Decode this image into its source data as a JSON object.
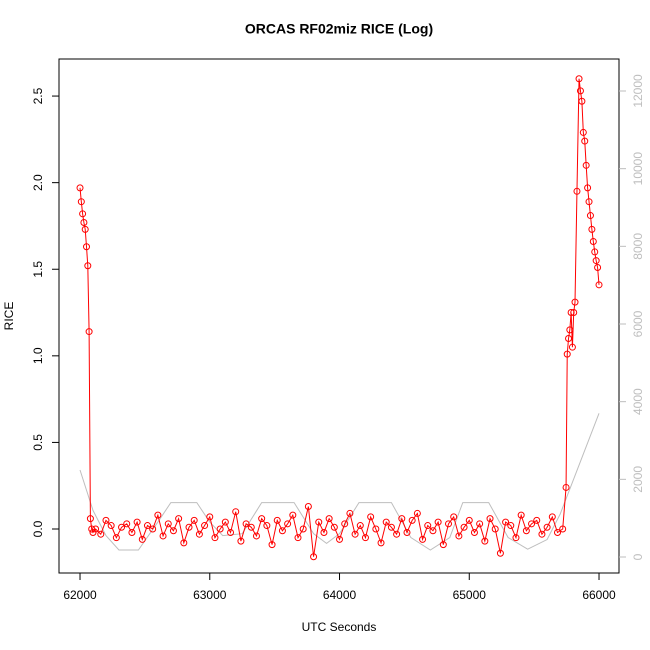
{
  "chart_data": {
    "type": "scatter",
    "title": "ORCAS RF02miz RICE (Log)",
    "xlabel": "UTC Seconds",
    "ylabel": "RICE",
    "xlim": [
      61838,
      66154
    ],
    "ylim": [
      -0.254,
      2.714
    ],
    "y2lim": [
      -412,
      12824
    ],
    "xticks": [
      62000,
      63000,
      64000,
      65000,
      66000
    ],
    "yticks": [
      {
        "value": 0,
        "label": "0.0"
      },
      {
        "value": 0.5,
        "label": "0.5"
      },
      {
        "value": 1,
        "label": "1.0"
      },
      {
        "value": 1.5,
        "label": "1.5"
      },
      {
        "value": 2,
        "label": "2.0"
      },
      {
        "value": 2.5,
        "label": "2.5"
      }
    ],
    "y2ticks": [
      0,
      2000,
      4000,
      6000,
      8000,
      10000,
      12000
    ],
    "series": [
      {
        "color": "#ff0000",
        "x": [
          62000,
          62010,
          62020,
          62030,
          62040,
          62050,
          62060,
          62070,
          62080,
          62090,
          62100,
          62120,
          62160,
          62200,
          62240,
          62280,
          62320,
          62360,
          62400,
          62440,
          62480,
          62520,
          62560,
          62600,
          62640,
          62680,
          62720,
          62760,
          62800,
          62840,
          62880,
          62920,
          62960,
          63000,
          63040,
          63080,
          63120,
          63160,
          63200,
          63240,
          63280,
          63320,
          63360,
          63400,
          63440,
          63480,
          63520,
          63560,
          63600,
          63640,
          63680,
          63720,
          63760,
          63800,
          63840,
          63880,
          63920,
          63960,
          64000,
          64040,
          64080,
          64120,
          64160,
          64200,
          64240,
          64280,
          64320,
          64360,
          64400,
          64440,
          64480,
          64520,
          64560,
          64600,
          64640,
          64680,
          64720,
          64760,
          64800,
          64840,
          64880,
          64920,
          64960,
          65000,
          65040,
          65080,
          65120,
          65160,
          65200,
          65240,
          65280,
          65320,
          65360,
          65400,
          65440,
          65480,
          65520,
          65560,
          65600,
          65640,
          65680,
          65720,
          65746,
          65755,
          65765,
          65775,
          65785,
          65795,
          65805,
          65815,
          65830,
          65846,
          65857,
          65868,
          65879,
          65890,
          65901,
          65912,
          65923,
          65934,
          65945,
          65956,
          65967,
          65978,
          65989,
          66000
        ],
        "values": [
          1.97,
          1.89,
          1.82,
          1.77,
          1.73,
          1.63,
          1.52,
          1.14,
          0.06,
          0.0,
          -0.02,
          0.0,
          -0.03,
          0.05,
          0.02,
          -0.05,
          0.01,
          0.03,
          -0.02,
          0.04,
          -0.06,
          0.02,
          0.0,
          0.08,
          -0.04,
          0.03,
          -0.01,
          0.06,
          -0.08,
          0.01,
          0.05,
          -0.03,
          0.02,
          0.07,
          -0.05,
          0.0,
          0.04,
          -0.02,
          0.1,
          -0.07,
          0.03,
          0.01,
          -0.04,
          0.06,
          0.02,
          -0.09,
          0.05,
          -0.01,
          0.03,
          0.08,
          -0.05,
          0.0,
          0.13,
          -0.16,
          0.04,
          -0.02,
          0.06,
          0.01,
          -0.06,
          0.03,
          0.09,
          -0.03,
          0.02,
          -0.05,
          0.07,
          0.0,
          -0.08,
          0.04,
          0.01,
          -0.03,
          0.06,
          -0.02,
          0.05,
          0.09,
          -0.06,
          0.02,
          -0.01,
          0.04,
          -0.09,
          0.03,
          0.07,
          -0.04,
          0.01,
          0.05,
          -0.02,
          0.03,
          -0.07,
          0.06,
          0.0,
          -0.14,
          0.04,
          0.02,
          -0.05,
          0.08,
          -0.01,
          0.03,
          0.05,
          -0.03,
          0.01,
          0.07,
          -0.02,
          0.0,
          0.24,
          1.01,
          1.1,
          1.15,
          1.25,
          1.05,
          1.25,
          1.31,
          1.95,
          2.6,
          2.53,
          2.47,
          2.29,
          2.24,
          2.1,
          1.97,
          1.89,
          1.81,
          1.73,
          1.66,
          1.6,
          1.55,
          1.51,
          1.41
        ]
      },
      {
        "color": "#bebebe",
        "axis": "y2",
        "x": [
          62000,
          62100,
          62200,
          62300,
          62450,
          62600,
          62700,
          62900,
          63000,
          63100,
          63250,
          63400,
          63650,
          63800,
          63900,
          64000,
          64150,
          64400,
          64550,
          64700,
          64850,
          64950,
          65150,
          65300,
          65450,
          65600,
          65700,
          66000
        ],
        "values": [
          2240,
          1200,
          550,
          180,
          180,
          900,
          1400,
          1400,
          900,
          550,
          600,
          1400,
          1400,
          600,
          350,
          600,
          1400,
          1400,
          500,
          180,
          500,
          1400,
          1400,
          500,
          200,
          450,
          1100,
          3700
        ]
      }
    ]
  }
}
